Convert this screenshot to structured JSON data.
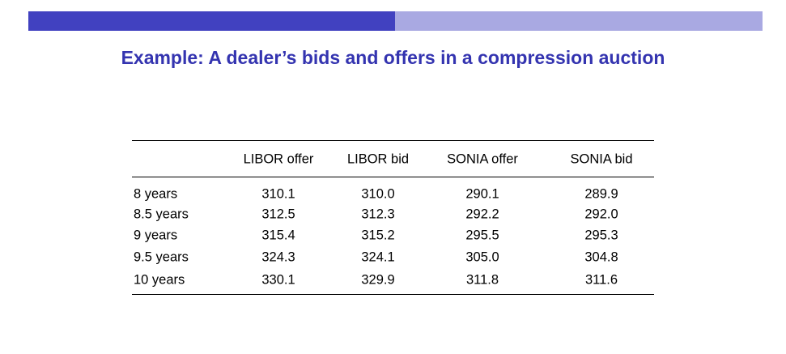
{
  "header": {
    "title": "Example: A dealer’s bids and offers in a compression auction"
  },
  "table": {
    "columns": [
      "",
      "LIBOR offer",
      "LIBOR bid",
      "SONIA offer",
      "SONIA bid"
    ],
    "rows": [
      [
        "8 years",
        "310.1",
        "310.0",
        "290.1",
        "289.9"
      ],
      [
        "8.5 years",
        "312.5",
        "312.3",
        "292.2",
        "292.0"
      ],
      [
        "9 years",
        "315.4",
        "315.2",
        "295.5",
        "295.3"
      ],
      [
        "9.5 years",
        "324.3",
        "324.1",
        "305.0",
        "304.8"
      ],
      [
        "10 years",
        "330.1",
        "329.9",
        "311.8",
        "311.6"
      ]
    ]
  }
}
